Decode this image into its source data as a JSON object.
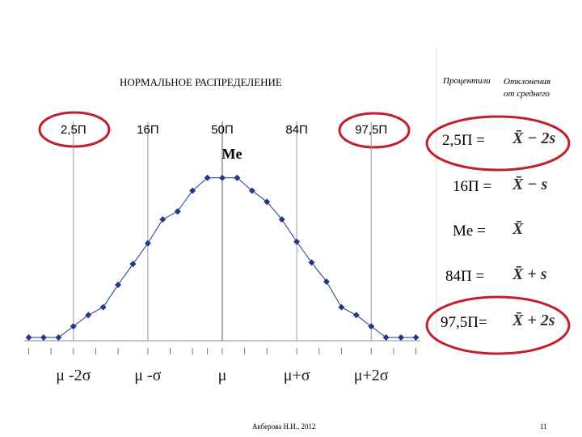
{
  "slide": {
    "col1": "Процентили",
    "col2": "Отклонения от среднего",
    "rows": [
      {
        "label": "2,5П =",
        "formula": "X̄ − 2s"
      },
      {
        "label": "16П =",
        "formula": "X̄ − s"
      },
      {
        "label": "Me =",
        "formula": "X̄"
      },
      {
        "label": "84П =",
        "formula": "X̄ + s"
      },
      {
        "label": "97,5П=",
        "formula": "X̄ + 2s"
      }
    ],
    "footer": "Акберова Н.И., 2012",
    "page": "11"
  },
  "chart_data": {
    "type": "line",
    "title": "НОРМАЛЬНОЕ РАСПРЕДЕЛЕНИЕ",
    "x": [
      1,
      2,
      3,
      4,
      5,
      6,
      7,
      8,
      9,
      10,
      11,
      12,
      13,
      14,
      15,
      16,
      17,
      18,
      19,
      20,
      21,
      22,
      23,
      24,
      25,
      26,
      27
    ],
    "values": [
      0,
      0,
      0,
      7,
      14,
      19,
      33,
      46,
      59,
      74,
      79,
      92,
      100,
      100,
      100,
      92,
      85,
      74,
      60,
      47,
      35,
      19,
      14,
      7,
      0,
      0,
      0
    ],
    "color": "#1f3a8a",
    "xlim": [
      0.7,
      27.3
    ],
    "ylim": [
      -2,
      181
    ],
    "xticks": [
      1,
      2.5,
      4,
      5.5,
      7,
      9,
      10.5,
      12,
      13,
      14,
      15.5,
      17,
      19,
      20.5,
      22,
      24,
      25.5,
      27
    ],
    "median_label": "Me",
    "vlines": [
      {
        "x": 4,
        "label": "2,5П",
        "sigma": "μ -2σ"
      },
      {
        "x": 9,
        "label": "16П",
        "sigma": "μ -σ"
      },
      {
        "x": 14,
        "label": "50П",
        "sigma": "μ"
      },
      {
        "x": 19,
        "label": "84П",
        "sigma": "μ+σ"
      },
      {
        "x": 24,
        "label": "97,5П",
        "sigma": "μ+2σ"
      }
    ]
  }
}
